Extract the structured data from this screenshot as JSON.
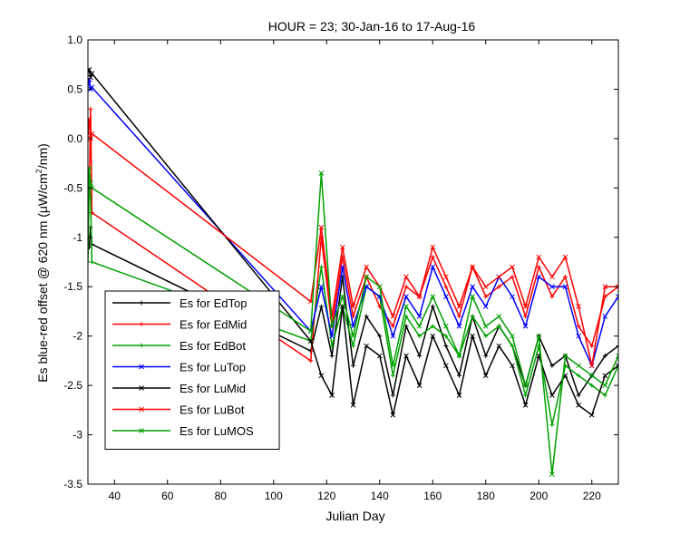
{
  "chart_data": {
    "type": "line",
    "title": "HOUR = 23; 30-Jan-16 to 17-Aug-16",
    "xlabel": "Julian Day",
    "ylabel_prefix": "Es blue-red offset @ 620 nm (",
    "ylabel_mu": "μ",
    "ylabel_mid": "W/cm",
    "ylabel_sup": "2",
    "ylabel_suffix": "/nm)",
    "xlim": [
      30,
      230
    ],
    "ylim": [
      -3.5,
      1.0
    ],
    "xticks": [
      40,
      60,
      80,
      100,
      120,
      140,
      160,
      180,
      200,
      220
    ],
    "xtick_labels": [
      "40",
      "60",
      "80",
      "100",
      "120",
      "140",
      "160",
      "180",
      "200",
      "220"
    ],
    "yticks": [
      -3.5,
      -3.0,
      -2.5,
      -2.0,
      -1.5,
      -1.0,
      -0.5,
      0.0,
      0.5,
      1.0
    ],
    "ytick_labels": [
      "-3.5",
      "-3",
      "-2.5",
      "-2",
      "-1.5",
      "-1",
      "-0.5",
      "0.0",
      "0.5",
      "1.0"
    ],
    "grid": false,
    "legend_position": "lower-left",
    "series": [
      {
        "name": "Es for EdTop",
        "color": "#000000",
        "marker": "plus",
        "x": [
          30,
          30.5,
          31,
          31.5,
          114,
          118,
          122,
          126,
          130,
          135,
          140,
          145,
          150,
          155,
          160,
          165,
          170,
          175,
          180,
          185,
          190,
          195,
          200,
          205,
          210,
          215,
          220,
          225,
          230
        ],
        "y": [
          -1.05,
          -1.1,
          -0.9,
          -1.07,
          -2.15,
          -1.7,
          -2.2,
          -1.4,
          -2.3,
          -1.8,
          -2.0,
          -2.6,
          -1.9,
          -2.2,
          -1.7,
          -2.1,
          -2.4,
          -1.8,
          -2.2,
          -1.9,
          -2.1,
          -2.5,
          -2.0,
          -2.3,
          -2.2,
          -2.6,
          -2.4,
          -2.2,
          -2.1
        ]
      },
      {
        "name": "Es for EdMid",
        "color": "#ff0000",
        "marker": "plus",
        "x": [
          30,
          30.5,
          31,
          31.5,
          114,
          118,
          122,
          126,
          130,
          135,
          140,
          145,
          150,
          155,
          160,
          165,
          170,
          175,
          180,
          185,
          190,
          195,
          200,
          205,
          210,
          215,
          220,
          225,
          230
        ],
        "y": [
          -0.75,
          -0.5,
          0.3,
          -0.75,
          -2.25,
          -1.0,
          -1.9,
          -1.2,
          -1.8,
          -1.4,
          -1.7,
          -1.9,
          -1.5,
          -1.6,
          -1.2,
          -1.5,
          -1.8,
          -1.3,
          -1.6,
          -1.5,
          -1.4,
          -1.8,
          -1.3,
          -1.6,
          -1.4,
          -1.9,
          -2.1,
          -1.6,
          -1.5
        ]
      },
      {
        "name": "Es for EdBot",
        "color": "#00a000",
        "marker": "plus",
        "x": [
          30,
          30.5,
          31,
          31.5,
          114,
          118,
          122,
          126,
          130,
          135,
          140,
          145,
          150,
          155,
          160,
          165,
          170,
          175,
          180,
          185,
          190,
          195,
          200,
          205,
          210,
          215,
          220,
          225,
          230
        ],
        "y": [
          -1.25,
          -0.4,
          -0.6,
          -1.25,
          -2.05,
          -1.3,
          -2.1,
          -1.7,
          -2.1,
          -1.5,
          -1.6,
          -2.4,
          -1.8,
          -2.0,
          -1.9,
          -2.0,
          -2.2,
          -1.8,
          -2.0,
          -1.9,
          -2.1,
          -2.6,
          -2.1,
          -2.9,
          -2.3,
          -2.4,
          -2.5,
          -2.6,
          -2.3
        ]
      },
      {
        "name": "Es for LuTop",
        "color": "#0000ff",
        "marker": "x",
        "x": [
          30,
          30.5,
          31,
          31.5,
          114,
          118,
          122,
          126,
          130,
          135,
          140,
          145,
          150,
          155,
          160,
          165,
          170,
          175,
          180,
          185,
          190,
          195,
          200,
          205,
          210,
          215,
          220,
          225,
          230
        ],
        "y": [
          0.55,
          0.6,
          0.5,
          0.52,
          -1.95,
          -1.5,
          -2.0,
          -1.3,
          -1.9,
          -1.5,
          -1.6,
          -2.0,
          -1.6,
          -1.8,
          -1.3,
          -1.6,
          -1.9,
          -1.5,
          -1.7,
          -1.4,
          -1.6,
          -1.9,
          -1.4,
          -1.5,
          -1.5,
          -2.0,
          -2.3,
          -1.8,
          -1.6
        ]
      },
      {
        "name": "Es for LuMid",
        "color": "#000000",
        "marker": "x",
        "x": [
          30,
          30.5,
          31,
          31.5,
          114,
          118,
          122,
          126,
          130,
          135,
          140,
          145,
          150,
          155,
          160,
          165,
          170,
          175,
          180,
          185,
          190,
          195,
          200,
          205,
          210,
          215,
          220,
          225,
          230
        ],
        "y": [
          0.68,
          0.7,
          0.62,
          0.66,
          -2.05,
          -2.4,
          -2.6,
          -1.7,
          -2.7,
          -2.1,
          -2.2,
          -2.8,
          -2.2,
          -2.5,
          -2.0,
          -2.3,
          -2.6,
          -2.0,
          -2.4,
          -2.1,
          -2.3,
          -2.7,
          -2.2,
          -2.6,
          -2.4,
          -2.7,
          -2.8,
          -2.4,
          -2.3
        ]
      },
      {
        "name": "Es for LuBot",
        "color": "#ff0000",
        "marker": "x",
        "x": [
          30,
          30.5,
          31,
          31.5,
          114,
          118,
          122,
          126,
          130,
          135,
          140,
          145,
          150,
          155,
          160,
          165,
          170,
          175,
          180,
          185,
          190,
          195,
          200,
          205,
          210,
          215,
          220,
          225,
          230
        ],
        "y": [
          0.05,
          0.2,
          0.0,
          0.05,
          -1.65,
          -0.9,
          -1.8,
          -1.1,
          -1.7,
          -1.3,
          -1.5,
          -1.8,
          -1.4,
          -1.6,
          -1.1,
          -1.4,
          -1.7,
          -1.3,
          -1.5,
          -1.4,
          -1.3,
          -1.7,
          -1.2,
          -1.4,
          -1.2,
          -1.7,
          -2.3,
          -1.5,
          -1.5
        ]
      },
      {
        "name": "Es for LuMOS",
        "color": "#00a000",
        "marker": "x",
        "x": [
          30,
          30.5,
          31,
          31.5,
          114,
          118,
          122,
          126,
          130,
          135,
          140,
          145,
          150,
          155,
          160,
          165,
          170,
          175,
          180,
          185,
          190,
          195,
          200,
          205,
          210,
          215,
          220,
          225,
          230
        ],
        "y": [
          -0.5,
          -0.3,
          -0.45,
          -0.5,
          -1.95,
          -0.35,
          -1.9,
          -1.6,
          -2.0,
          -1.4,
          -1.5,
          -2.3,
          -1.7,
          -1.9,
          -1.6,
          -1.9,
          -2.2,
          -1.6,
          -1.9,
          -1.8,
          -2.0,
          -2.5,
          -2.0,
          -3.4,
          -2.2,
          -2.3,
          -2.4,
          -2.5,
          -2.2
        ]
      }
    ]
  }
}
